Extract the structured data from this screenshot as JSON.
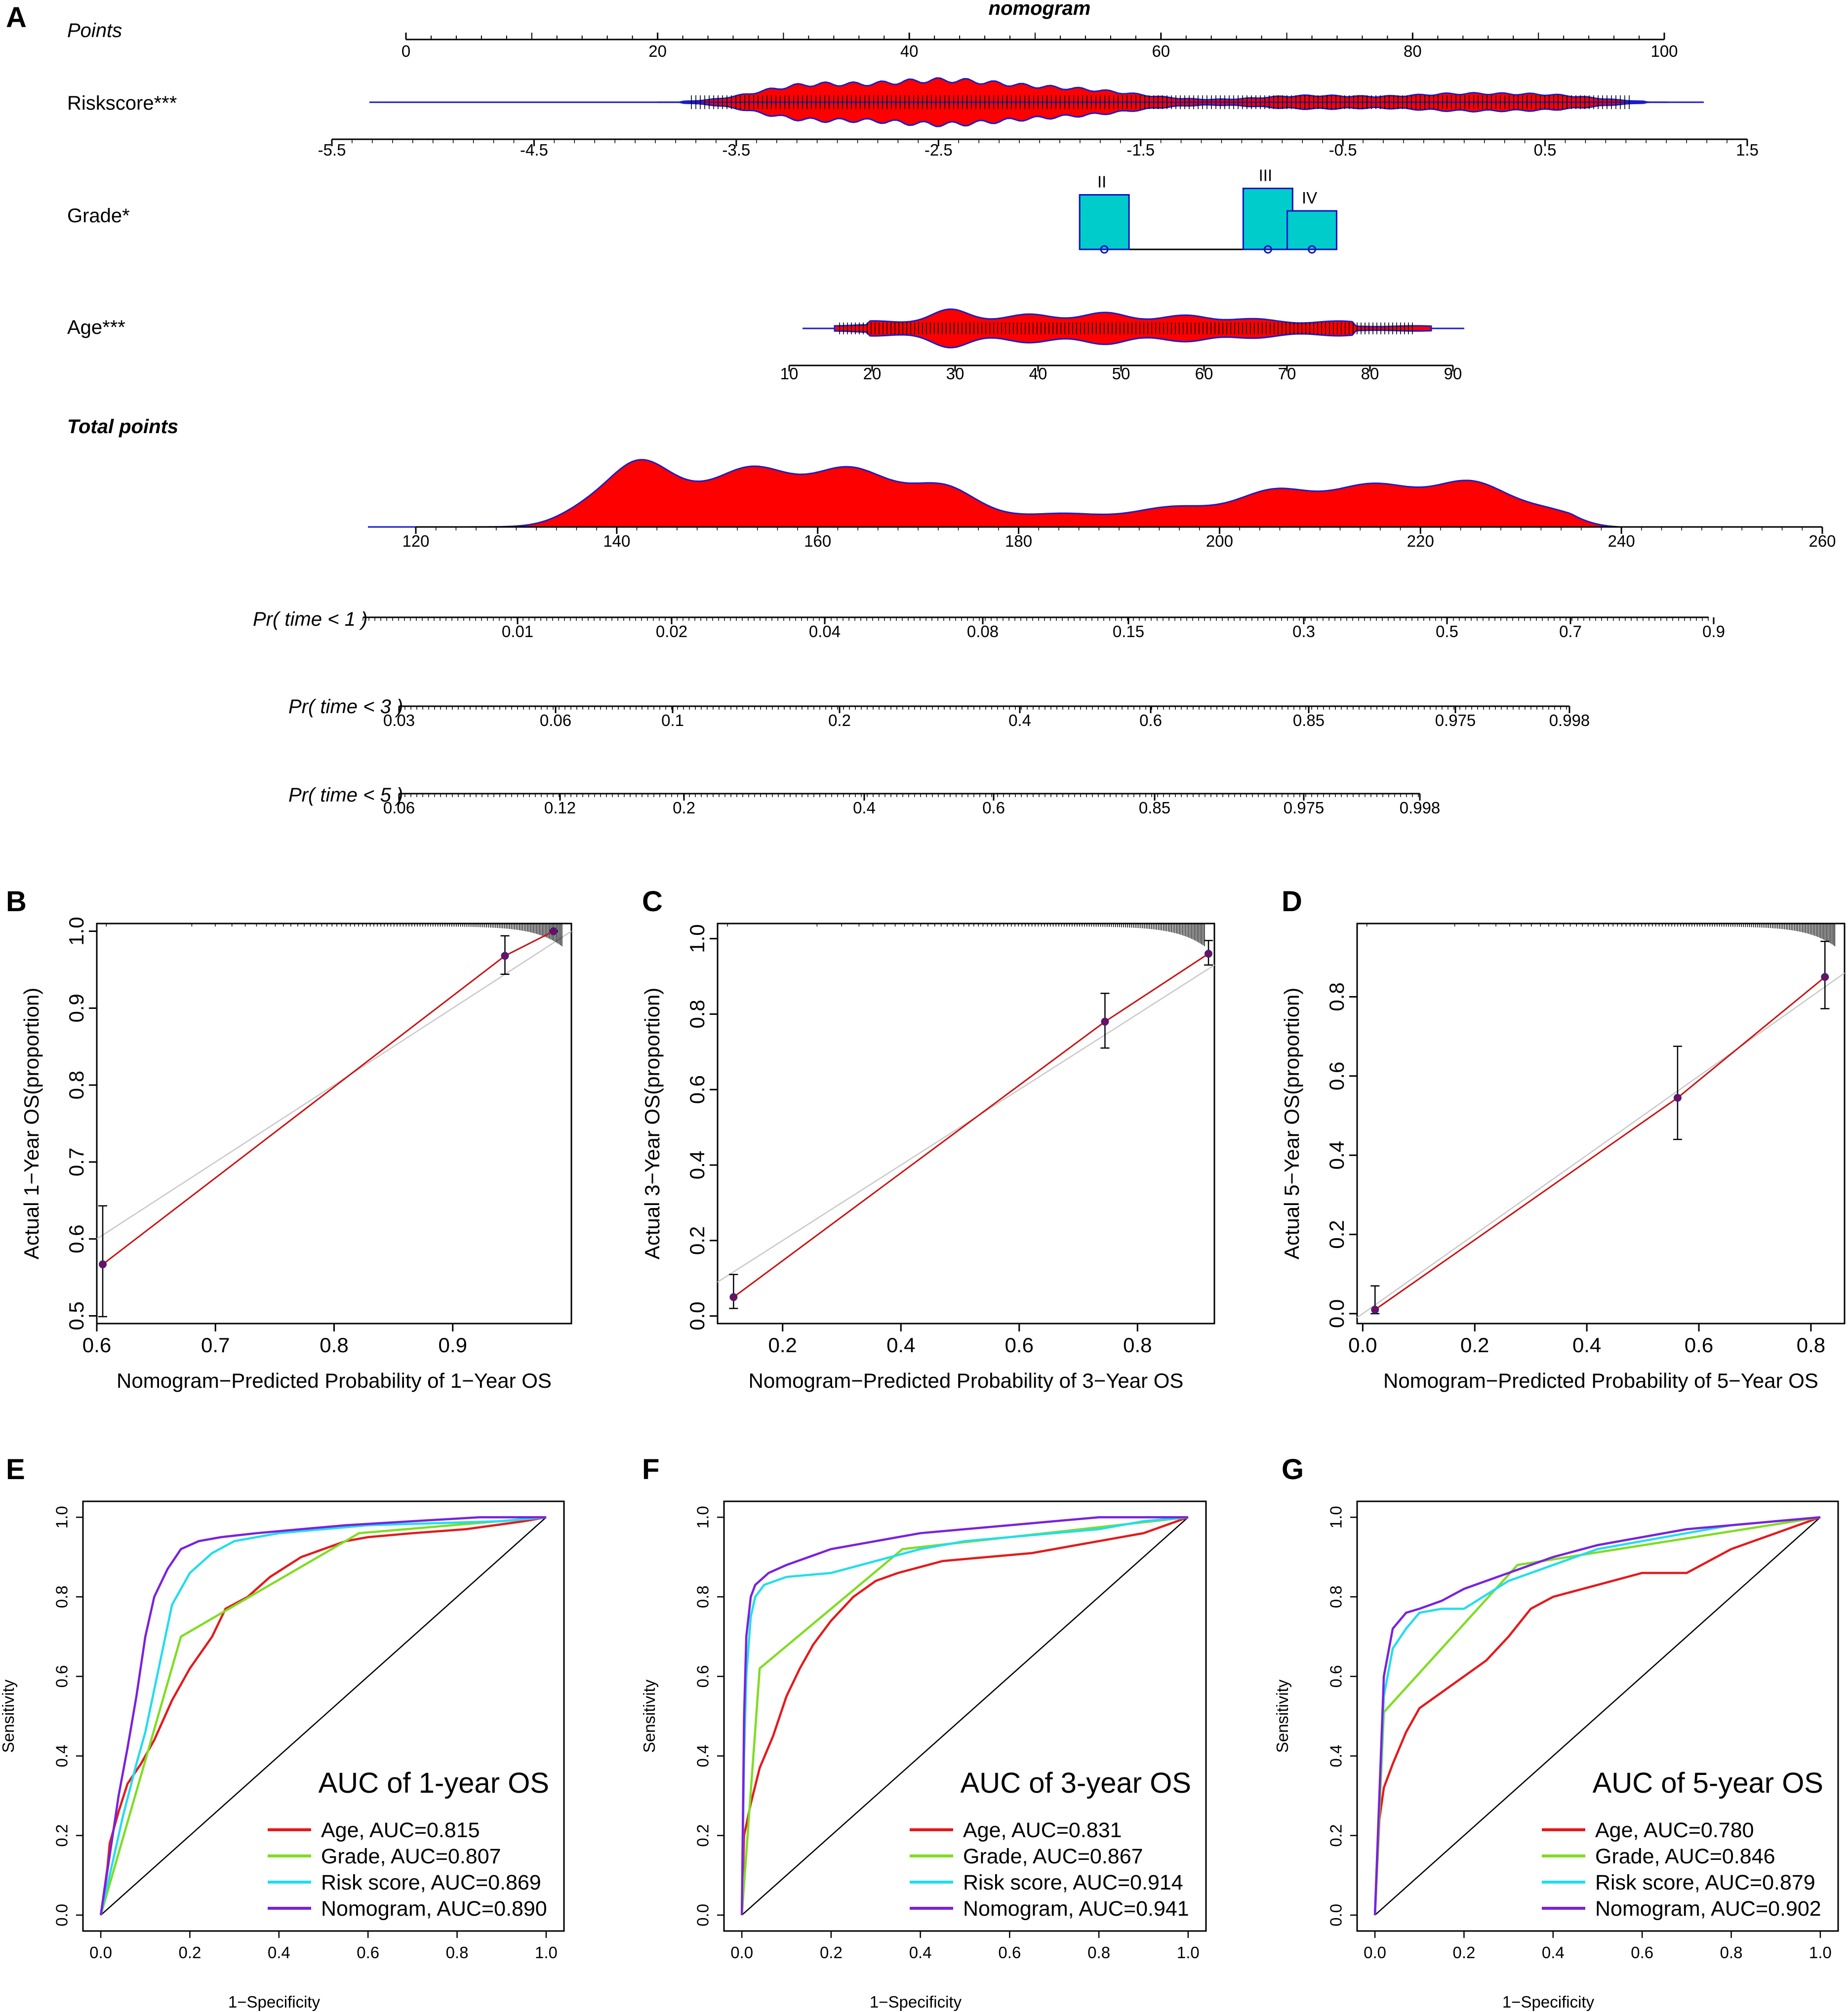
{
  "panel_labels": [
    "A",
    "B",
    "C",
    "D",
    "E",
    "F",
    "G"
  ],
  "colors": {
    "density_fill": "#ff0000",
    "density_edge": "#1c1cc8",
    "grade_box": "#00cccc",
    "age": "#e41a1c",
    "grade": "#7fdd22",
    "risk": "#22ddee",
    "nomogram": "#7a22dd",
    "calib_line": "#cc1111",
    "ideal_line": "#c8c8c8"
  },
  "nomogram": {
    "title": "nomogram",
    "rows": {
      "points": "Points",
      "riskscore": "Riskscore***",
      "grade": "Grade*",
      "age": "Age***",
      "total": "Total points",
      "pr1": "Pr( time < 1 )",
      "pr3": "Pr( time < 3 )",
      "pr5": "Pr( time < 5 )"
    },
    "points_ticks": [
      "0",
      "20",
      "40",
      "60",
      "80",
      "100"
    ],
    "riskscore_ticks": [
      "-5.5",
      "-4.5",
      "-3.5",
      "-2.5",
      "-1.5",
      "-0.5",
      "0.5",
      "1.5"
    ],
    "grade_levels": [
      "II",
      "III",
      "IV"
    ],
    "grade_points": [
      55.5,
      68.5,
      72
    ],
    "grade_bar_heights": [
      0.85,
      0.95,
      0.6
    ],
    "age_ticks": [
      "10",
      "20",
      "30",
      "40",
      "50",
      "60",
      "70",
      "80",
      "90"
    ],
    "total_ticks": [
      "120",
      "140",
      "160",
      "180",
      "200",
      "220",
      "240",
      "260"
    ],
    "pr1_ticks": [
      "0.01",
      "0.02",
      "0.04",
      "0.08",
      "0.15",
      "0.3",
      "0.5",
      "0.7",
      "0.9"
    ],
    "pr3_ticks": [
      "0.03",
      "0.06",
      "0.1",
      "0.2",
      "0.4",
      "0.6",
      "0.85",
      "0.975",
      "0.998"
    ],
    "pr5_ticks": [
      "0.06",
      "0.12",
      "0.2",
      "0.4",
      "0.6",
      "0.85",
      "0.975",
      "0.998"
    ]
  },
  "chart_data": [
    {
      "panel": "B",
      "type": "scatter",
      "title": "",
      "xlabel": "Nomogram−Predicted Probability of 1−Year OS",
      "ylabel": "Actual 1−Year OS(proportion)",
      "xlim": [
        0.6,
        1.0
      ],
      "ylim": [
        0.49,
        1.01
      ],
      "xticks": [
        0.6,
        0.7,
        0.8,
        0.9
      ],
      "yticks": [
        0.5,
        0.6,
        0.7,
        0.8,
        0.9,
        1.0
      ],
      "x_tick_labels": [
        "0.6",
        "0.7",
        "0.8",
        "0.9"
      ],
      "y_tick_labels": [
        "0.5",
        "0.6",
        "0.7",
        "0.8",
        "0.9",
        "1.0"
      ],
      "points": [
        {
          "x": 0.605,
          "y": 0.567,
          "lo": 0.499,
          "hi": 0.643
        },
        {
          "x": 0.944,
          "y": 0.968,
          "lo": 0.944,
          "hi": 0.994
        },
        {
          "x": 0.985,
          "y": 1.0,
          "lo": 1.0,
          "hi": 1.0
        }
      ]
    },
    {
      "panel": "C",
      "type": "scatter",
      "title": "",
      "xlabel": "Nomogram−Predicted Probability of 3−Year OS",
      "ylabel": "Actual 3−Year OS(proportion)",
      "xlim": [
        0.09,
        0.93
      ],
      "ylim": [
        -0.02,
        1.04
      ],
      "xticks": [
        0.2,
        0.4,
        0.6,
        0.8
      ],
      "yticks": [
        0.0,
        0.2,
        0.4,
        0.6,
        0.8,
        1.0
      ],
      "x_tick_labels": [
        "0.2",
        "0.4",
        "0.6",
        "0.8"
      ],
      "y_tick_labels": [
        "0.0",
        "0.2",
        "0.4",
        "0.6",
        "0.8",
        "1.0"
      ],
      "points": [
        {
          "x": 0.117,
          "y": 0.05,
          "lo": 0.02,
          "hi": 0.11
        },
        {
          "x": 0.745,
          "y": 0.78,
          "lo": 0.71,
          "hi": 0.855
        },
        {
          "x": 0.92,
          "y": 0.96,
          "lo": 0.93,
          "hi": 0.995
        }
      ]
    },
    {
      "panel": "D",
      "type": "scatter",
      "title": "",
      "xlabel": "Nomogram−Predicted Probability of 5−Year OS",
      "ylabel": "Actual 5−Year OS(proportion)",
      "xlim": [
        -0.01,
        0.86
      ],
      "ylim": [
        -0.025,
        0.985
      ],
      "xticks": [
        0.0,
        0.2,
        0.4,
        0.6,
        0.8
      ],
      "yticks": [
        0.0,
        0.2,
        0.4,
        0.6,
        0.8
      ],
      "x_tick_labels": [
        "0.0",
        "0.2",
        "0.4",
        "0.6",
        "0.8"
      ],
      "y_tick_labels": [
        "0.0",
        "0.2",
        "0.4",
        "0.6",
        "0.8"
      ],
      "points": [
        {
          "x": 0.022,
          "y": 0.01,
          "lo": 0.0,
          "hi": 0.07
        },
        {
          "x": 0.562,
          "y": 0.545,
          "lo": 0.44,
          "hi": 0.675
        },
        {
          "x": 0.825,
          "y": 0.85,
          "lo": 0.77,
          "hi": 0.94
        }
      ]
    },
    {
      "panel": "E",
      "type": "line",
      "title": "AUC of 1-year OS",
      "xlabel": "1−Specificity",
      "ylabel": "Sensitivity",
      "xlim": [
        -0.04,
        1.04
      ],
      "ylim": [
        -0.04,
        1.04
      ],
      "ticks": [
        "0.0",
        "0.2",
        "0.4",
        "0.6",
        "0.8",
        "1.0"
      ],
      "series": [
        {
          "name": "Age",
          "label": "Age, AUC=0.815",
          "color_key": "age",
          "x": [
            0,
            0.015,
            0.02,
            0.04,
            0.06,
            0.09,
            0.12,
            0.16,
            0.2,
            0.25,
            0.28,
            0.33,
            0.38,
            0.45,
            0.55,
            0.6,
            0.7,
            0.82,
            0.95,
            1
          ],
          "y": [
            0,
            0.12,
            0.18,
            0.26,
            0.33,
            0.38,
            0.44,
            0.54,
            0.62,
            0.7,
            0.77,
            0.8,
            0.85,
            0.9,
            0.94,
            0.95,
            0.96,
            0.97,
            0.99,
            1
          ]
        },
        {
          "name": "Grade",
          "label": "Grade, AUC=0.807",
          "color_key": "grade",
          "x": [
            0,
            0.18,
            0.58,
            1
          ],
          "y": [
            0,
            0.7,
            0.96,
            1
          ]
        },
        {
          "name": "Risk score",
          "label": "Risk score, AUC=0.869",
          "color_key": "risk",
          "x": [
            0,
            0.02,
            0.05,
            0.08,
            0.1,
            0.13,
            0.16,
            0.2,
            0.25,
            0.3,
            0.4,
            0.5,
            0.6,
            0.75,
            0.9,
            1
          ],
          "y": [
            0,
            0.1,
            0.25,
            0.38,
            0.46,
            0.62,
            0.78,
            0.86,
            0.91,
            0.94,
            0.96,
            0.97,
            0.98,
            0.985,
            0.99,
            1
          ]
        },
        {
          "name": "Nomogram",
          "label": "Nomogram, AUC=0.890",
          "color_key": "nomogram",
          "x": [
            0,
            0.02,
            0.04,
            0.06,
            0.08,
            0.1,
            0.12,
            0.15,
            0.18,
            0.22,
            0.27,
            0.35,
            0.45,
            0.55,
            0.7,
            0.85,
            1
          ],
          "y": [
            0,
            0.15,
            0.3,
            0.42,
            0.55,
            0.7,
            0.8,
            0.87,
            0.92,
            0.94,
            0.95,
            0.96,
            0.97,
            0.98,
            0.99,
            1,
            1
          ]
        }
      ]
    },
    {
      "panel": "F",
      "type": "line",
      "title": "AUC of 3-year OS",
      "xlabel": "1−Specificity",
      "ylabel": "Sensitivity",
      "xlim": [
        -0.04,
        1.04
      ],
      "ylim": [
        -0.04,
        1.04
      ],
      "ticks": [
        "0.0",
        "0.2",
        "0.4",
        "0.6",
        "0.8",
        "1.0"
      ],
      "series": [
        {
          "name": "Age",
          "label": "Age, AUC=0.831",
          "color_key": "age",
          "x": [
            0,
            0.005,
            0.02,
            0.04,
            0.07,
            0.1,
            0.13,
            0.16,
            0.2,
            0.25,
            0.3,
            0.35,
            0.45,
            0.55,
            0.65,
            0.8,
            0.9,
            1
          ],
          "y": [
            0,
            0.2,
            0.28,
            0.37,
            0.45,
            0.55,
            0.62,
            0.68,
            0.74,
            0.8,
            0.84,
            0.86,
            0.89,
            0.9,
            0.91,
            0.94,
            0.96,
            1
          ]
        },
        {
          "name": "Grade",
          "label": "Grade, AUC=0.867",
          "color_key": "grade",
          "x": [
            0,
            0.04,
            0.36,
            1
          ],
          "y": [
            0,
            0.62,
            0.92,
            1
          ]
        },
        {
          "name": "Risk score",
          "label": "Risk score, AUC=0.914",
          "color_key": "risk",
          "x": [
            0,
            0.005,
            0.01,
            0.02,
            0.03,
            0.05,
            0.1,
            0.2,
            0.3,
            0.4,
            0.5,
            0.6,
            0.7,
            0.8,
            0.9,
            1
          ],
          "y": [
            0,
            0.4,
            0.6,
            0.75,
            0.8,
            0.83,
            0.85,
            0.86,
            0.89,
            0.92,
            0.94,
            0.95,
            0.96,
            0.97,
            0.99,
            1
          ]
        },
        {
          "name": "Nomogram",
          "label": "Nomogram, AUC=0.941",
          "color_key": "nomogram",
          "x": [
            0,
            0.005,
            0.01,
            0.02,
            0.03,
            0.06,
            0.1,
            0.15,
            0.2,
            0.3,
            0.4,
            0.5,
            0.6,
            0.7,
            0.8,
            0.9,
            1
          ],
          "y": [
            0,
            0.5,
            0.7,
            0.8,
            0.83,
            0.86,
            0.88,
            0.9,
            0.92,
            0.94,
            0.96,
            0.97,
            0.98,
            0.99,
            1,
            1,
            1
          ]
        }
      ]
    },
    {
      "panel": "G",
      "type": "line",
      "title": "AUC of 5-year OS",
      "xlabel": "1−Specificity",
      "ylabel": "Sensitivity",
      "xlim": [
        -0.04,
        1.04
      ],
      "ylim": [
        -0.04,
        1.04
      ],
      "ticks": [
        "0.0",
        "0.2",
        "0.4",
        "0.6",
        "0.8",
        "1.0"
      ],
      "series": [
        {
          "name": "Age",
          "label": "Age, AUC=0.780",
          "color_key": "age",
          "x": [
            0,
            0.01,
            0.02,
            0.04,
            0.07,
            0.1,
            0.15,
            0.2,
            0.25,
            0.3,
            0.35,
            0.4,
            0.5,
            0.6,
            0.7,
            0.8,
            0.9,
            1
          ],
          "y": [
            0,
            0.24,
            0.32,
            0.38,
            0.46,
            0.52,
            0.56,
            0.6,
            0.64,
            0.7,
            0.77,
            0.8,
            0.83,
            0.86,
            0.86,
            0.92,
            0.96,
            1
          ]
        },
        {
          "name": "Grade",
          "label": "Grade, AUC=0.846",
          "color_key": "grade",
          "x": [
            0,
            0.02,
            0.32,
            1
          ],
          "y": [
            0,
            0.51,
            0.88,
            1
          ]
        },
        {
          "name": "Risk score",
          "label": "Risk score, AUC=0.879",
          "color_key": "risk",
          "x": [
            0,
            0.01,
            0.02,
            0.04,
            0.07,
            0.1,
            0.15,
            0.2,
            0.3,
            0.4,
            0.5,
            0.6,
            0.7,
            0.8,
            0.9,
            1
          ],
          "y": [
            0,
            0.3,
            0.55,
            0.67,
            0.72,
            0.76,
            0.77,
            0.77,
            0.84,
            0.88,
            0.92,
            0.94,
            0.96,
            0.98,
            0.99,
            1
          ]
        },
        {
          "name": "Nomogram",
          "label": "Nomogram, AUC=0.902",
          "color_key": "nomogram",
          "x": [
            0,
            0.01,
            0.02,
            0.04,
            0.07,
            0.1,
            0.15,
            0.2,
            0.3,
            0.4,
            0.5,
            0.6,
            0.7,
            0.8,
            0.9,
            1
          ],
          "y": [
            0,
            0.3,
            0.6,
            0.72,
            0.76,
            0.77,
            0.79,
            0.82,
            0.86,
            0.9,
            0.93,
            0.95,
            0.97,
            0.98,
            0.99,
            1
          ]
        }
      ]
    }
  ]
}
